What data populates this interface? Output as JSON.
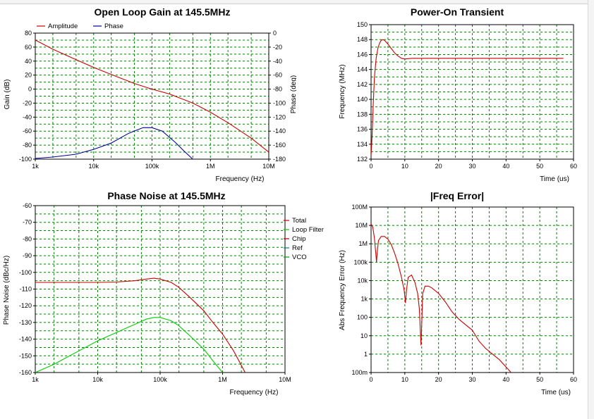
{
  "chart_data": [
    {
      "id": "gain",
      "type": "line",
      "title": "Open Loop Gain at 145.5MHz",
      "xlabel": "Frequency (Hz)",
      "ylabel": "Gain (dB)",
      "y2label": "Phase (deg)",
      "xscale": "log",
      "xlim": [
        1000,
        10000000
      ],
      "ylim": [
        -100,
        80
      ],
      "y2lim": [
        -180,
        0
      ],
      "xticks": [
        1000,
        10000,
        100000,
        1000000,
        10000000
      ],
      "xticklabels": [
        "1k",
        "10k",
        "100k",
        "1M",
        "10M"
      ],
      "yticks": [
        -100,
        -80,
        -60,
        -40,
        -20,
        0,
        20,
        40,
        60,
        80
      ],
      "yticklabels": [
        "-100",
        "-80",
        "-60",
        "-40",
        "-20",
        "0",
        "20",
        "40",
        "60",
        "80"
      ],
      "y2ticks": [
        -180,
        -160,
        -140,
        -120,
        -100,
        -80,
        -60,
        -40,
        -20,
        0
      ],
      "y2ticklabels": [
        "-180",
        "-160",
        "-140",
        "-120",
        "-100",
        "-80",
        "-60",
        "-40",
        "-20",
        "0"
      ],
      "grid": true,
      "legend": "top-left",
      "series": [
        {
          "name": "Amplitude",
          "color": "#cc0000",
          "axis": "left",
          "x": [
            1000,
            2000,
            5000,
            10000,
            20000,
            50000,
            100000,
            200000,
            500000,
            1000000,
            2000000,
            5000000,
            10000000
          ],
          "y": [
            70,
            57,
            42,
            31,
            21,
            8,
            0,
            -7,
            -20,
            -33,
            -48,
            -70,
            -90
          ]
        },
        {
          "name": "Phase",
          "color": "#000099",
          "axis": "right",
          "x": [
            1000,
            2000,
            5000,
            10000,
            20000,
            40000,
            70000,
            100000,
            150000,
            250000,
            350000,
            500000
          ],
          "y": [
            -179,
            -177,
            -173,
            -166,
            -157,
            -143,
            -135,
            -135,
            -140,
            -156,
            -168,
            -180
          ]
        }
      ]
    },
    {
      "id": "transient",
      "type": "line",
      "title": "Power-On Transient",
      "xlabel": "Time (us)",
      "ylabel": "Frequency (MHz)",
      "xscale": "linear",
      "xlim": [
        0,
        60
      ],
      "ylim": [
        132,
        150
      ],
      "xticks": [
        0,
        10,
        20,
        30,
        40,
        50,
        60
      ],
      "xticklabels": [
        "0",
        "10",
        "20",
        "30",
        "40",
        "50",
        "60"
      ],
      "yticks": [
        132,
        134,
        136,
        138,
        140,
        142,
        144,
        146,
        148,
        150
      ],
      "yticklabels": [
        "132",
        "134",
        "136",
        "138",
        "140",
        "142",
        "144",
        "146",
        "148",
        "150"
      ],
      "grid": true,
      "series": [
        {
          "color": "#cc0000",
          "x": [
            0,
            0.3,
            0.6,
            1,
            1.5,
            2,
            2.5,
            3,
            3.5,
            4,
            5,
            6,
            7,
            8,
            9,
            10,
            11,
            12,
            15,
            20,
            30,
            40,
            50,
            57
          ],
          "y": [
            132.5,
            135,
            139,
            143,
            145.5,
            146.8,
            147.5,
            147.9,
            148,
            147.9,
            147.4,
            146.8,
            146.2,
            145.8,
            145.5,
            145.4,
            145.45,
            145.5,
            145.5,
            145.5,
            145.5,
            145.5,
            145.5,
            145.5
          ]
        }
      ]
    },
    {
      "id": "noise",
      "type": "line",
      "title": "Phase Noise at 145.5MHz",
      "xlabel": "Frequency (Hz)",
      "ylabel": "Phase Noise (dBc/Hz)",
      "xscale": "log",
      "xlim": [
        1000,
        10000000
      ],
      "ylim": [
        -160,
        -60
      ],
      "xticks": [
        1000,
        10000,
        100000,
        1000000,
        10000000
      ],
      "xticklabels": [
        "1k",
        "10k",
        "100k",
        "1M",
        "10M"
      ],
      "yticks": [
        -160,
        -150,
        -140,
        -130,
        -120,
        -110,
        -100,
        -90,
        -80,
        -70,
        -60
      ],
      "yticklabels": [
        "-160",
        "-150",
        "-140",
        "-130",
        "-120",
        "-110",
        "-100",
        "-90",
        "-80",
        "-70",
        "-60"
      ],
      "grid": true,
      "legend": "right-outside",
      "legend_entries": [
        {
          "name": "Total",
          "color": "#cc0000"
        },
        {
          "name": "Loop Filter",
          "color": "#00cc00"
        },
        {
          "name": "Chip",
          "color": "#aa0000"
        },
        {
          "name": "Ref",
          "color": "#008080"
        },
        {
          "name": "VCO",
          "color": "#009900"
        }
      ],
      "series": [
        {
          "name": "Total",
          "color": "#cc0000",
          "x": [
            1000,
            3000,
            10000,
            20000,
            40000,
            60000,
            80000,
            100000,
            150000,
            200000,
            300000,
            500000,
            700000,
            1000000,
            1500000,
            2300000
          ],
          "y": [
            -106,
            -106,
            -106,
            -105.8,
            -105,
            -104,
            -103.5,
            -104,
            -106,
            -109,
            -115,
            -123,
            -130,
            -137,
            -147,
            -160
          ]
        },
        {
          "name": "Loop Filter",
          "color": "#00cc00",
          "x": [
            1000,
            2000,
            5000,
            10000,
            20000,
            40000,
            60000,
            80000,
            100000,
            150000,
            200000,
            300000,
            500000,
            700000,
            1000000
          ],
          "y": [
            -160,
            -155,
            -147,
            -141,
            -136,
            -131,
            -128,
            -127,
            -127,
            -129,
            -132,
            -138,
            -146,
            -153,
            -160
          ]
        }
      ]
    },
    {
      "id": "ferror",
      "type": "line",
      "title": "|Freq Error|",
      "xlabel": "Time (us)",
      "ylabel": "Abs Frequency Error (Hz)",
      "xscale": "linear",
      "yscale": "log",
      "xlim": [
        0,
        60
      ],
      "ylim": [
        0.1,
        100000000
      ],
      "xticks": [
        0,
        10,
        20,
        30,
        40,
        50,
        60
      ],
      "xticklabels": [
        "0",
        "10",
        "20",
        "30",
        "40",
        "50",
        "60"
      ],
      "yticks": [
        0.1,
        1,
        10,
        100,
        1000,
        10000,
        100000,
        1000000,
        10000000,
        100000000
      ],
      "yticklabels": [
        "100m",
        "1",
        "10",
        "100",
        "1k",
        "10k",
        "100k",
        "1M",
        "10M",
        "100M"
      ],
      "grid": true,
      "series": [
        {
          "color": "#cc0000",
          "x": [
            0,
            0.5,
            1,
            1.4,
            1.6,
            1.8,
            2.2,
            3,
            4,
            5,
            6,
            7,
            8,
            9,
            9.8,
            10.2,
            10.5,
            11,
            12,
            13,
            13.8,
            14.3,
            14.8,
            15.3,
            16,
            17,
            18,
            20,
            22,
            24,
            26,
            28,
            30,
            32,
            34,
            36,
            38,
            40,
            41.5
          ],
          "y": [
            12000000,
            8000000,
            2000000,
            300000,
            100000,
            300000,
            1500000,
            2500000,
            2500000,
            1800000,
            900000,
            300000,
            80000,
            15000,
            3000,
            600,
            3000,
            15000,
            20000,
            8000,
            2000,
            300,
            3,
            2000,
            5000,
            5000,
            4000,
            2000,
            700,
            200,
            80,
            40,
            20,
            5,
            2,
            1,
            0.5,
            0.2,
            0.1
          ]
        }
      ]
    }
  ]
}
